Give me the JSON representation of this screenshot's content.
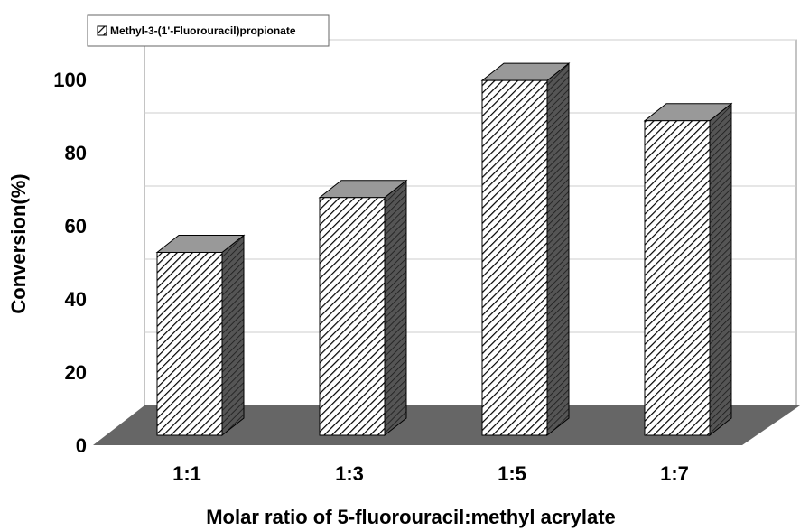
{
  "chart_data": {
    "type": "bar",
    "categories": [
      "1:1",
      "1:3",
      "1:5",
      "1:7"
    ],
    "series": [
      {
        "name": "Methyl-3-(1'-Fluorouracil)propionate",
        "values": [
          50,
          65,
          97,
          86
        ]
      }
    ],
    "xlabel": "Molar ratio of 5-fluorouracil:methyl acrylate",
    "ylabel": "Conversion(%)",
    "ylim": [
      0,
      100
    ],
    "yticks": [
      "0",
      "20",
      "40",
      "60",
      "80",
      "100"
    ],
    "grid": true,
    "legend_position": "top-left",
    "style": "3d-bar-hatched",
    "colors": {
      "floor": "#666666",
      "bar_side": "#555555",
      "bar_top": "#999999",
      "hatch": "#000000",
      "grid": "#cccccc"
    }
  }
}
